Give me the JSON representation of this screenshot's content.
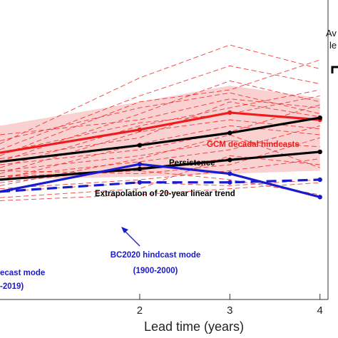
{
  "chart_data": {
    "type": "line",
    "xlabel": "Lead time (years)",
    "x_ticks": [
      "2",
      "3",
      "4"
    ],
    "xlim": [
      0.45,
      4.2
    ],
    "ylim": [
      0,
      1
    ],
    "colors": {
      "gcm": "#ee1c1c",
      "gcm_band": "#f9c9c9",
      "black": "#000000",
      "blue": "#1a1acf"
    },
    "series": [
      {
        "key": "gcm_hindcasts",
        "style": "solid",
        "color": "#ee1c1c",
        "x": [
          0.45,
          2,
          3,
          4
        ],
        "y": [
          0.49,
          0.567,
          0.624,
          0.6
        ]
      },
      {
        "key": "persistence",
        "style": "solid",
        "color": "#000000",
        "x": [
          0.45,
          2,
          3,
          4
        ],
        "y": [
          0.46,
          0.515,
          0.556,
          0.607
        ]
      },
      {
        "key": "linear_trend",
        "style": "solid",
        "color": "#000000",
        "x": [
          0.45,
          2,
          3,
          4
        ],
        "y": [
          0.4,
          0.436,
          0.466,
          0.493
        ]
      },
      {
        "key": "bc2020_hindcast_1900_2000",
        "style": "solid",
        "color": "#1a1acf",
        "x": [
          0.45,
          2,
          3,
          4
        ],
        "y": [
          0.36,
          0.452,
          0.42,
          0.342
        ]
      },
      {
        "key": "bc2020_hindcast_recent",
        "style": "dashed",
        "color": "#1a1acf",
        "x": [
          0.45,
          2,
          3,
          4
        ],
        "y": [
          0.36,
          0.391,
          0.391,
          0.4
        ]
      }
    ],
    "ensemble_band": {
      "x": [
        0.45,
        2,
        3,
        4
      ],
      "upper": [
        0.58,
        0.66,
        0.714,
        0.672
      ],
      "lower": [
        0.4,
        0.41,
        0.42,
        0.43
      ]
    },
    "ensemble_members": [
      [
        0.52,
        0.74,
        0.85,
        0.77
      ],
      [
        0.5,
        0.68,
        0.78,
        0.72
      ],
      [
        0.48,
        0.66,
        0.7,
        0.8
      ],
      [
        0.46,
        0.62,
        0.73,
        0.66
      ],
      [
        0.55,
        0.6,
        0.67,
        0.64
      ],
      [
        0.44,
        0.58,
        0.64,
        0.7
      ],
      [
        0.42,
        0.56,
        0.6,
        0.57
      ],
      [
        0.47,
        0.54,
        0.66,
        0.61
      ],
      [
        0.4,
        0.52,
        0.58,
        0.55
      ],
      [
        0.45,
        0.5,
        0.56,
        0.65
      ],
      [
        0.43,
        0.48,
        0.53,
        0.51
      ],
      [
        0.41,
        0.46,
        0.5,
        0.58
      ],
      [
        0.39,
        0.44,
        0.47,
        0.49
      ],
      [
        0.43,
        0.42,
        0.45,
        0.54
      ],
      [
        0.37,
        0.4,
        0.43,
        0.47
      ],
      [
        0.38,
        0.47,
        0.55,
        0.44
      ],
      [
        0.41,
        0.43,
        0.4,
        0.35
      ],
      [
        0.36,
        0.39,
        0.38,
        0.4
      ],
      [
        0.34,
        0.37,
        0.48,
        0.45
      ],
      [
        0.53,
        0.64,
        0.69,
        0.62
      ],
      [
        0.49,
        0.59,
        0.62,
        0.68
      ],
      [
        0.33,
        0.35,
        0.37,
        0.39
      ]
    ],
    "annotations": {
      "gcm": "GCM decadal hindcasts",
      "persistence": "Persistence",
      "trend": "Extrapolation of 20-year linear trend",
      "bc_a_line1": "BC2020 hindcast mode",
      "bc_a_line2": "(1900-2000)",
      "bc_b_line1": "ecast mode",
      "bc_b_line2": "-2019)"
    },
    "side_text": {
      "line1": "Av",
      "line2": "le"
    }
  }
}
